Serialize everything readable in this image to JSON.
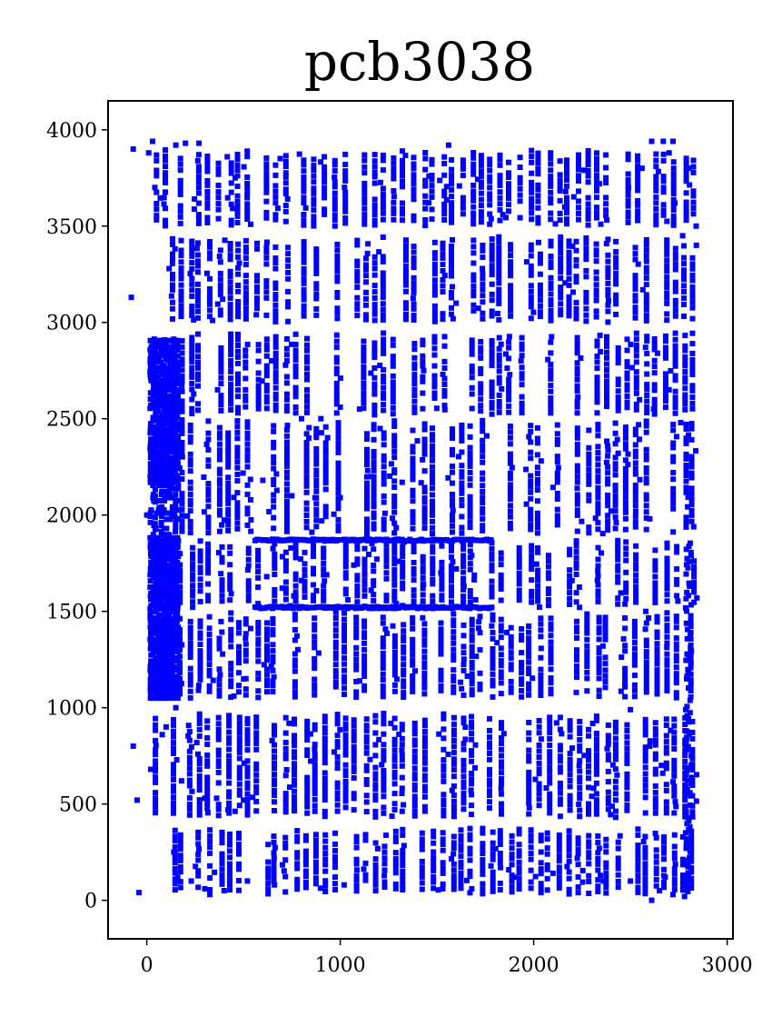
{
  "chart_data": {
    "type": "scatter",
    "title": "pcb3038",
    "xlabel": "",
    "ylabel": "",
    "xlim": [
      -200,
      3030
    ],
    "ylim": [
      -200,
      4150
    ],
    "xticks": [
      0,
      1000,
      2000,
      3000
    ],
    "yticks": [
      0,
      500,
      1000,
      1500,
      2000,
      2500,
      3000,
      3500,
      4000
    ],
    "xtick_labels": [
      "0",
      "1000",
      "2000",
      "3000"
    ],
    "ytick_labels": [
      "0",
      "500",
      "1000",
      "1500",
      "2000",
      "2500",
      "3000",
      "3500",
      "4000"
    ],
    "grid": false,
    "marker": "square",
    "point_color": "#0000ff",
    "series": [
      {
        "columns_x": [
          50,
          90,
          140,
          180,
          230,
          270,
          320,
          380,
          430,
          470,
          520,
          570,
          620,
          660,
          720,
          770,
          820,
          870,
          920,
          980,
          1030,
          1080,
          1130,
          1180,
          1230,
          1280,
          1330,
          1380,
          1430,
          1480,
          1530,
          1580,
          1630,
          1680,
          1730,
          1780,
          1830,
          1880,
          1930,
          1980,
          2030,
          2080,
          2130,
          2180,
          2230,
          2280,
          2330,
          2380,
          2430,
          2480,
          2530,
          2580,
          2630,
          2680,
          2730,
          2780,
          2820
        ],
        "bands": [
          [
            30,
            380
          ],
          [
            430,
            980
          ],
          [
            1050,
            1500
          ],
          [
            1520,
            1880
          ],
          [
            1900,
            2500
          ],
          [
            2520,
            2950
          ],
          [
            3000,
            3450
          ],
          [
            3500,
            3900
          ]
        ],
        "horizontal_lines": [
          {
            "y": 1520,
            "x_from": 560,
            "x_to": 1780
          },
          {
            "y": 1870,
            "x_from": 560,
            "x_to": 1780
          }
        ],
        "scattered_points": [
          [
            -70,
            3900
          ],
          [
            -80,
            3130
          ],
          [
            -70,
            800
          ],
          [
            -50,
            520
          ],
          [
            -40,
            40
          ],
          [
            0,
            2000
          ],
          [
            10,
            3880
          ],
          [
            30,
            3940
          ],
          [
            150,
            3920
          ],
          [
            200,
            3930
          ],
          [
            270,
            3930
          ],
          [
            1560,
            3920
          ],
          [
            2610,
            3940
          ],
          [
            2670,
            3940
          ],
          [
            2720,
            3940
          ],
          [
            2800,
            3800
          ],
          [
            2700,
            3880
          ],
          [
            2560,
            3800
          ],
          [
            2490,
            3700
          ],
          [
            2730,
            3620
          ],
          [
            2840,
            3500
          ],
          [
            2770,
            3450
          ],
          [
            2340,
            3720
          ],
          [
            2260,
            3790
          ],
          [
            2640,
            2840
          ],
          [
            2700,
            2650
          ],
          [
            2620,
            2550
          ],
          [
            2760,
            2480
          ],
          [
            2600,
            1980
          ],
          [
            2580,
            1500
          ],
          [
            2500,
            990
          ],
          [
            2600,
            800
          ],
          [
            2660,
            700
          ],
          [
            2300,
            540
          ],
          [
            2610,
            0
          ],
          [
            2650,
            50
          ],
          [
            2720,
            30
          ],
          [
            2780,
            20
          ],
          [
            2680,
            120
          ],
          [
            2500,
            100
          ],
          [
            340,
            3010
          ],
          [
            800,
            2500
          ],
          [
            900,
            2500
          ],
          [
            1000,
            2560
          ],
          [
            1100,
            2550
          ],
          [
            600,
            2180
          ],
          [
            750,
            2100
          ],
          [
            870,
            2090
          ],
          [
            1000,
            2090
          ],
          [
            1160,
            2200
          ],
          [
            1280,
            2220
          ],
          [
            1320,
            2170
          ],
          [
            620,
            1680
          ],
          [
            700,
            1620
          ],
          [
            800,
            1660
          ],
          [
            930,
            1690
          ],
          [
            1070,
            1740
          ],
          [
            1160,
            1610
          ],
          [
            1300,
            1760
          ],
          [
            1430,
            1640
          ],
          [
            1520,
            1700
          ],
          [
            1600,
            1720
          ],
          [
            1640,
            1630
          ],
          [
            1680,
            1790
          ],
          [
            1700,
            1560
          ],
          [
            1290,
            1540
          ],
          [
            1040,
            1560
          ],
          [
            760,
            1580
          ],
          [
            450,
            1060
          ],
          [
            150,
            1000
          ],
          [
            100,
            900
          ],
          [
            80,
            860
          ],
          [
            20,
            680
          ],
          [
            180,
            620
          ],
          [
            300,
            530
          ],
          [
            420,
            470
          ],
          [
            500,
            520
          ],
          [
            140,
            250
          ],
          [
            160,
            120
          ],
          [
            230,
            100
          ],
          [
            300,
            60
          ],
          [
            400,
            50
          ],
          [
            520,
            100
          ],
          [
            660,
            80
          ],
          [
            1020,
            80
          ],
          [
            1530,
            60
          ],
          [
            1680,
            60
          ],
          [
            1900,
            120
          ],
          [
            2100,
            140
          ],
          [
            2230,
            40
          ],
          [
            2360,
            100
          ]
        ]
      }
    ]
  }
}
